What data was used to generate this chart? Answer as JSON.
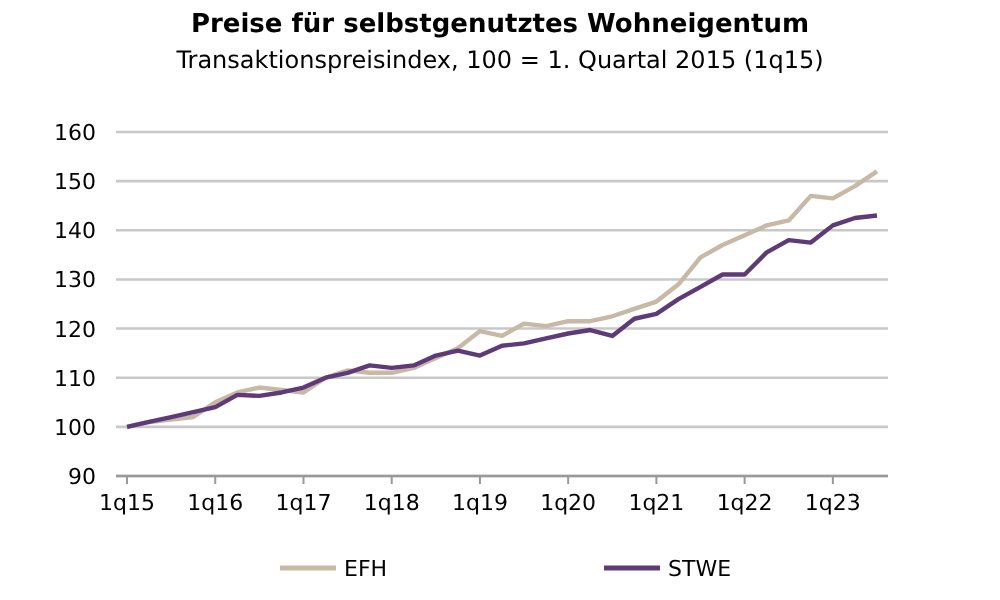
{
  "chart_data": {
    "type": "line",
    "title": "Preise für selbstgenutztes Wohneigentum",
    "subtitle": "Transaktionspreisindex, 100 = 1. Quartal 2015 (1q15)",
    "categories": [
      "1q15",
      null,
      null,
      null,
      "1q16",
      null,
      null,
      null,
      "1q17",
      null,
      null,
      null,
      "1q18",
      null,
      null,
      null,
      "1q19",
      null,
      null,
      null,
      "1q20",
      null,
      null,
      null,
      "1q21",
      null,
      null,
      null,
      "1q22",
      null,
      null,
      null,
      "1q23",
      null,
      null
    ],
    "series": [
      {
        "name": "EFH",
        "color": "#c8b8a6",
        "values": [
          100,
          101,
          101.5,
          102,
          105,
          107,
          108,
          107.5,
          107,
          110,
          111.5,
          111,
          111,
          112,
          114,
          116,
          119.5,
          118.5,
          121,
          120.5,
          121.5,
          121.5,
          122.5,
          124,
          125.5,
          129,
          134.5,
          137,
          139,
          141,
          142,
          147,
          146.5,
          149,
          152
        ]
      },
      {
        "name": "STWE",
        "color": "#5f3a78",
        "values": [
          100,
          101,
          102,
          103,
          104,
          106.5,
          106.3,
          107,
          108,
          110,
          111,
          112.5,
          112,
          112.5,
          114.5,
          115.5,
          114.5,
          116.5,
          117,
          118,
          119,
          119.7,
          118.5,
          122,
          123,
          126,
          128.5,
          131,
          131,
          135.5,
          138,
          137.5,
          141,
          142.5,
          143
        ]
      }
    ],
    "ylim": [
      90,
      160
    ],
    "yticks": [
      90,
      100,
      110,
      120,
      130,
      140,
      150,
      160
    ],
    "grid": "y",
    "legend": "bottom",
    "marker": "none",
    "line_style": "solid"
  }
}
